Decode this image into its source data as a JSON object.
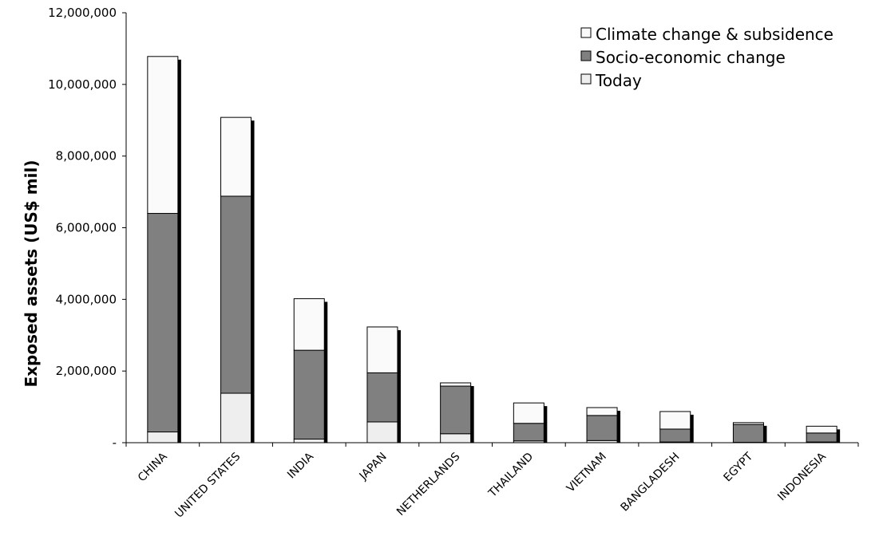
{
  "chart_data": {
    "type": "bar",
    "stacked": true,
    "title": "",
    "xlabel": "",
    "ylabel": "Exposed assets (US$ mil)",
    "ylim": [
      0,
      12000000
    ],
    "yticks": [
      0,
      2000000,
      4000000,
      6000000,
      8000000,
      10000000,
      12000000
    ],
    "ytick_labels": [
      "-",
      "2,000,000",
      "4,000,000",
      "6,000,000",
      "8,000,000",
      "10,000,000",
      "12,000,000"
    ],
    "categories": [
      "CHINA",
      "UNITED STATES",
      "INDIA",
      "JAPAN",
      "NETHERLANDS",
      "THAILAND",
      "VIETNAM",
      "BANGLADESH",
      "EGYPT",
      "INDONESIA"
    ],
    "series": [
      {
        "name": "Today",
        "color": "#eeeeee",
        "values": [
          300000,
          1380000,
          100000,
          580000,
          250000,
          50000,
          60000,
          20000,
          10000,
          20000
        ]
      },
      {
        "name": "Socio-economic change",
        "color": "#808080",
        "values": [
          6100000,
          5500000,
          2480000,
          1370000,
          1330000,
          490000,
          700000,
          360000,
          500000,
          250000
        ]
      },
      {
        "name": "Climate change & subsidence",
        "color": "#fafafa",
        "values": [
          4380000,
          2200000,
          1440000,
          1280000,
          90000,
          570000,
          220000,
          490000,
          50000,
          190000
        ]
      }
    ],
    "legend_order": [
      "Climate change & subsidence",
      "Socio-economic change",
      "Today"
    ],
    "legend_position": "top-right",
    "grid": false
  }
}
